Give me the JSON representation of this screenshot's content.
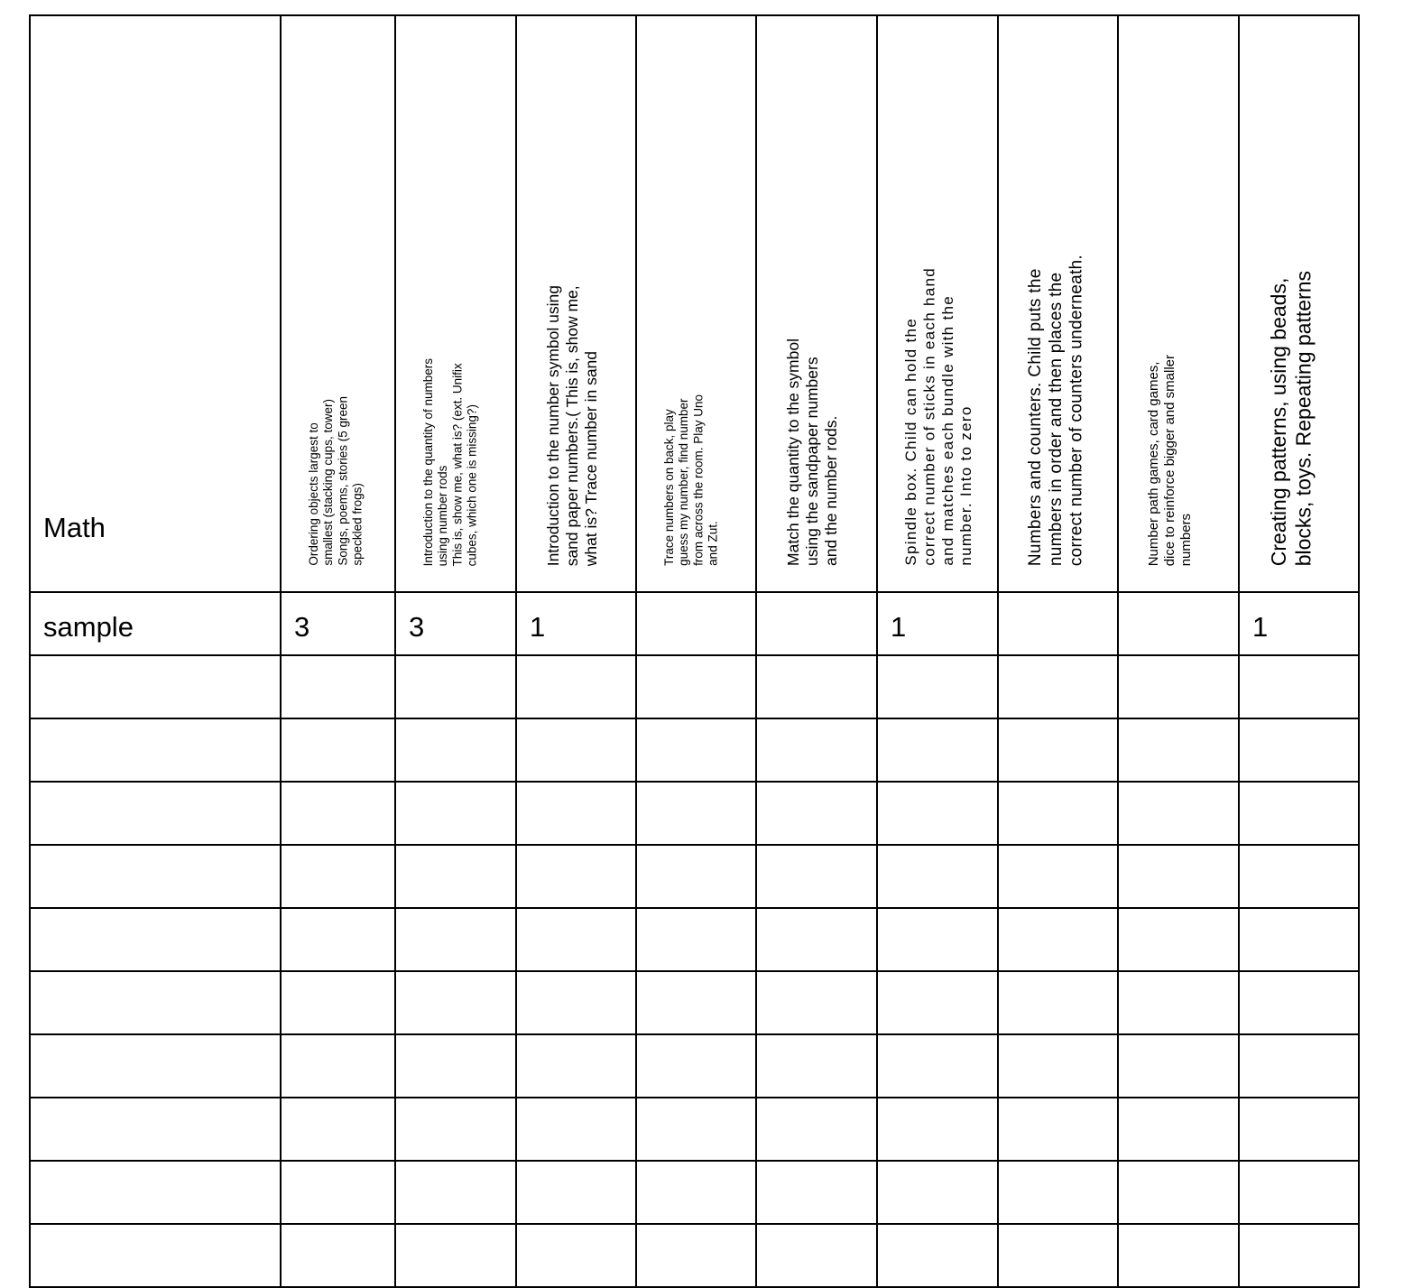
{
  "subject": "Math",
  "headers": [
    "Ordering objects largest to\nsmallest (stacking cups, tower)\nSongs, poems, stories (5 green\nspeckled frogs)",
    "Introduction to the quantity of numbers\nusing number rods\nThis is, show me, what is? (ext. Unifix\ncubes, which one is missing?)",
    "Introduction to the number symbol using\nsand paper numbers.( This is, show me,\nwhat is?  Trace number in sand",
    "Trace numbers on back, play\nguess my number, find number\nfrom across the room.  Play Uno\nand Zut.",
    "Match the quantity to the symbol\nusing the sandpaper numbers\nand the number rods.",
    "Spindle box.  Child can hold the\ncorrect number of sticks in each hand\nand matches each bundle with the\nnumber.  Into to zero",
    "Numbers and counters.  Child puts the\nnumbers in order and then places the\ncorrect number of counters underneath.",
    "Number path games, card games,\ndice to reinforce bigger and smaller\nnumbers",
    "Creating patterns, using beads,\nblocks, toys.  Repeating patterns"
  ],
  "rows": [
    {
      "name": "sample",
      "values": [
        "3",
        "3",
        "1",
        "",
        "",
        "1",
        "",
        "",
        "1"
      ]
    },
    {
      "name": "",
      "values": [
        "",
        "",
        "",
        "",
        "",
        "",
        "",
        "",
        ""
      ]
    },
    {
      "name": "",
      "values": [
        "",
        "",
        "",
        "",
        "",
        "",
        "",
        "",
        ""
      ]
    },
    {
      "name": "",
      "values": [
        "",
        "",
        "",
        "",
        "",
        "",
        "",
        "",
        ""
      ]
    },
    {
      "name": "",
      "values": [
        "",
        "",
        "",
        "",
        "",
        "",
        "",
        "",
        ""
      ]
    },
    {
      "name": "",
      "values": [
        "",
        "",
        "",
        "",
        "",
        "",
        "",
        "",
        ""
      ]
    },
    {
      "name": "",
      "values": [
        "",
        "",
        "",
        "",
        "",
        "",
        "",
        "",
        ""
      ]
    },
    {
      "name": "",
      "values": [
        "",
        "",
        "",
        "",
        "",
        "",
        "",
        "",
        ""
      ]
    },
    {
      "name": "",
      "values": [
        "",
        "",
        "",
        "",
        "",
        "",
        "",
        "",
        ""
      ]
    },
    {
      "name": "",
      "values": [
        "",
        "",
        "",
        "",
        "",
        "",
        "",
        "",
        ""
      ]
    },
    {
      "name": "",
      "values": [
        "",
        "",
        "",
        "",
        "",
        "",
        "",
        "",
        ""
      ]
    }
  ]
}
